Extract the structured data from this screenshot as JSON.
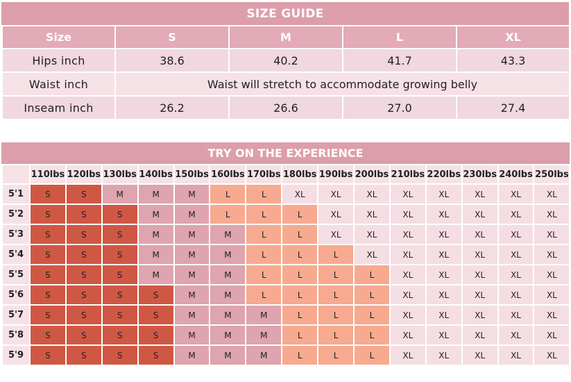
{
  "size_guide": {
    "title": "SIZE GUIDE",
    "header": [
      "Size",
      "S",
      "M",
      "L",
      "XL"
    ],
    "hips": {
      "label": "Hips inch",
      "values": [
        "38.6",
        "40.2",
        "41.7",
        "43.3"
      ]
    },
    "waist": {
      "label": "Waist inch",
      "note": "Waist will stretch to accommodate growing belly"
    },
    "inseam": {
      "label": "Inseam inch",
      "values": [
        "26.2",
        "26.6",
        "27.0",
        "27.4"
      ]
    }
  },
  "experience": {
    "title": "TRY ON THE EXPERIENCE",
    "weights": [
      "110lbs",
      "120lbs",
      "130lbs",
      "140lbs",
      "150lbs",
      "160lbs",
      "170lbs",
      "180lbs",
      "190lbs",
      "200lbs",
      "210lbs",
      "220lbs",
      "230lbs",
      "240lbs",
      "250lbs"
    ],
    "heights": [
      "5'1",
      "5'2",
      "5'3",
      "5'4",
      "5'5",
      "5'6",
      "5'7",
      "5'8",
      "5'9"
    ],
    "grid": [
      [
        "S",
        "S",
        "M",
        "M",
        "M",
        "L",
        "L",
        "XL",
        "XL",
        "XL",
        "XL",
        "XL",
        "XL",
        "XL",
        "XL"
      ],
      [
        "S",
        "S",
        "S",
        "M",
        "M",
        "L",
        "L",
        "L",
        "XL",
        "XL",
        "XL",
        "XL",
        "XL",
        "XL",
        "XL"
      ],
      [
        "S",
        "S",
        "S",
        "M",
        "M",
        "M",
        "L",
        "L",
        "XL",
        "XL",
        "XL",
        "XL",
        "XL",
        "XL",
        "XL"
      ],
      [
        "S",
        "S",
        "S",
        "M",
        "M",
        "M",
        "L",
        "L",
        "L",
        "XL",
        "XL",
        "XL",
        "XL",
        "XL",
        "XL"
      ],
      [
        "S",
        "S",
        "S",
        "M",
        "M",
        "M",
        "L",
        "L",
        "L",
        "L",
        "XL",
        "XL",
        "XL",
        "XL",
        "XL"
      ],
      [
        "S",
        "S",
        "S",
        "S",
        "M",
        "M",
        "L",
        "L",
        "L",
        "L",
        "XL",
        "XL",
        "XL",
        "XL",
        "XL"
      ],
      [
        "S",
        "S",
        "S",
        "S",
        "M",
        "M",
        "M",
        "L",
        "L",
        "L",
        "XL",
        "XL",
        "XL",
        "XL",
        "XL"
      ],
      [
        "S",
        "S",
        "S",
        "S",
        "M",
        "M",
        "M",
        "L",
        "L",
        "L",
        "XL",
        "XL",
        "XL",
        "XL",
        "XL"
      ],
      [
        "S",
        "S",
        "S",
        "S",
        "M",
        "M",
        "M",
        "L",
        "L",
        "L",
        "XL",
        "XL",
        "XL",
        "XL",
        "XL"
      ]
    ],
    "size_colors": {
      "S": "#cf5845",
      "M": "#dea4af",
      "L": "#f7aa90",
      "XL": "#f5dee3"
    }
  }
}
